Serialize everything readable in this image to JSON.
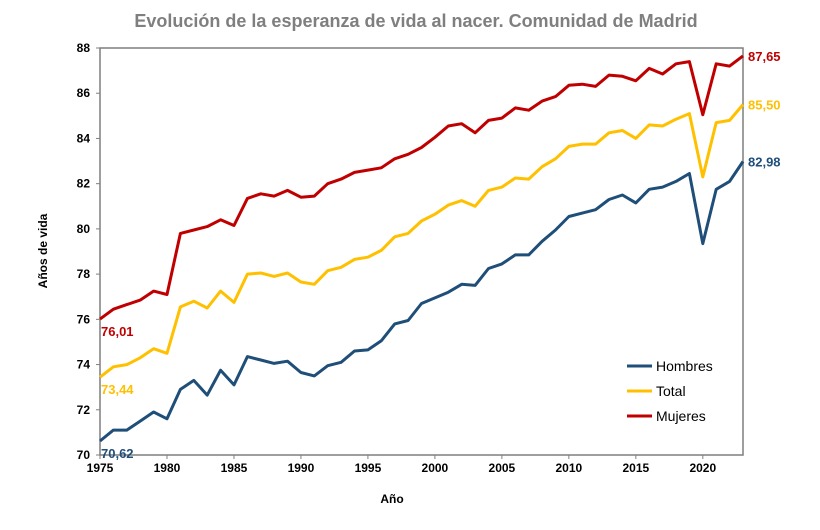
{
  "chart_data": {
    "type": "line",
    "title": "Evolución de la esperanza de vida al nacer. Comunidad de Madrid",
    "xlabel": "Año",
    "ylabel": "Años de vida",
    "xlim": [
      1975,
      2023
    ],
    "ylim": [
      70,
      88
    ],
    "x_ticks": [
      "1975",
      "1980",
      "1985",
      "1990",
      "1995",
      "2000",
      "2005",
      "2010",
      "2015",
      "2020"
    ],
    "y_ticks": [
      "70",
      "72",
      "74",
      "76",
      "78",
      "80",
      "82",
      "84",
      "86",
      "88"
    ],
    "grid": false,
    "legend_position": "bottom-right",
    "x": [
      1975,
      1976,
      1977,
      1978,
      1979,
      1980,
      1981,
      1982,
      1983,
      1984,
      1985,
      1986,
      1987,
      1988,
      1989,
      1990,
      1991,
      1992,
      1993,
      1994,
      1995,
      1996,
      1997,
      1998,
      1999,
      2000,
      2001,
      2002,
      2003,
      2004,
      2005,
      2006,
      2007,
      2008,
      2009,
      2010,
      2011,
      2012,
      2013,
      2014,
      2015,
      2016,
      2017,
      2018,
      2019,
      2020,
      2021,
      2022,
      2023
    ],
    "series": [
      {
        "name": "Hombres",
        "color": "#1F4E79",
        "start_label": "70,62",
        "end_label": "82,98",
        "values": [
          70.62,
          71.1,
          71.1,
          71.5,
          71.9,
          71.6,
          72.9,
          73.3,
          72.65,
          73.75,
          73.1,
          74.35,
          74.2,
          74.05,
          74.15,
          73.65,
          73.5,
          73.95,
          74.1,
          74.6,
          74.65,
          75.05,
          75.8,
          75.95,
          76.7,
          76.95,
          77.2,
          77.55,
          77.5,
          78.25,
          78.45,
          78.85,
          78.85,
          79.45,
          79.95,
          80.55,
          80.7,
          80.85,
          81.3,
          81.5,
          81.15,
          81.75,
          81.85,
          82.1,
          82.45,
          79.35,
          81.75,
          82.1,
          82.98
        ]
      },
      {
        "name": "Total",
        "color": "#FFC000",
        "start_label": "73,44",
        "end_label": "85,50",
        "values": [
          73.44,
          73.9,
          74.0,
          74.3,
          74.7,
          74.5,
          76.55,
          76.8,
          76.5,
          77.25,
          76.75,
          78.0,
          78.05,
          77.9,
          78.05,
          77.65,
          77.55,
          78.15,
          78.3,
          78.65,
          78.75,
          79.05,
          79.65,
          79.8,
          80.35,
          80.65,
          81.05,
          81.25,
          81.0,
          81.7,
          81.85,
          82.25,
          82.2,
          82.75,
          83.1,
          83.65,
          83.75,
          83.75,
          84.25,
          84.35,
          84.0,
          84.6,
          84.55,
          84.85,
          85.1,
          82.3,
          84.7,
          84.8,
          85.5
        ]
      },
      {
        "name": "Mujeres",
        "color": "#C00000",
        "start_label": "76,01",
        "end_label": "87,65",
        "values": [
          76.01,
          76.45,
          76.65,
          76.85,
          77.25,
          77.1,
          79.8,
          79.95,
          80.1,
          80.4,
          80.15,
          81.35,
          81.55,
          81.45,
          81.7,
          81.4,
          81.45,
          82.0,
          82.2,
          82.5,
          82.6,
          82.7,
          83.1,
          83.3,
          83.6,
          84.05,
          84.55,
          84.65,
          84.25,
          84.8,
          84.9,
          85.35,
          85.25,
          85.65,
          85.85,
          86.35,
          86.4,
          86.3,
          86.8,
          86.75,
          86.55,
          87.1,
          86.85,
          87.3,
          87.4,
          85.05,
          87.3,
          87.2,
          87.65
        ]
      }
    ]
  }
}
